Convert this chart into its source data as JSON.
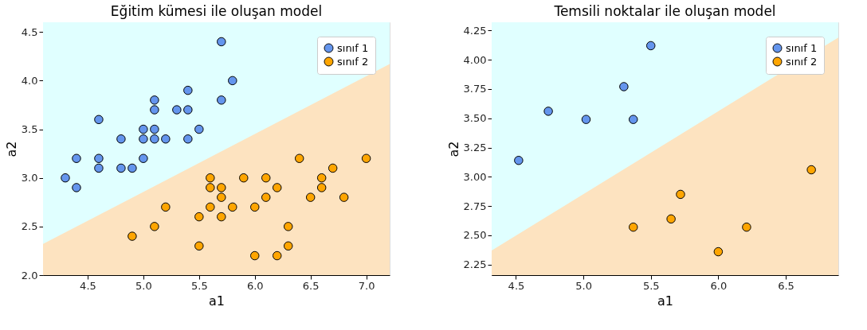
{
  "chart_data": [
    {
      "type": "scatter",
      "title": "Eğitim kümesi ile oluşan model",
      "xlabel": "a1",
      "ylabel": "a2",
      "xlim": [
        4.1,
        7.21
      ],
      "ylim": [
        2.0,
        4.6
      ],
      "xticks": [
        {
          "value": 4.5,
          "label": "4.5"
        },
        {
          "value": 5,
          "label": "5.0"
        },
        {
          "value": 5.5,
          "label": "5.5"
        },
        {
          "value": 6,
          "label": "6.0"
        },
        {
          "value": 6.5,
          "label": "6.5"
        },
        {
          "value": 7,
          "label": "7.0"
        }
      ],
      "yticks": [
        {
          "value": 2,
          "label": "2.0"
        },
        {
          "value": 2.5,
          "label": "2.5"
        },
        {
          "value": 3,
          "label": "3.0"
        },
        {
          "value": 3.5,
          "label": "3.5"
        },
        {
          "value": 4,
          "label": "4.0"
        },
        {
          "value": 4.5,
          "label": "4.5"
        }
      ],
      "legend": "top right",
      "bands": [
        {
          "axis": "y",
          "from": 2.0,
          "to": 4.6,
          "color": "#e0ffff"
        }
      ],
      "series": [
        {
          "type": "area",
          "color": "#fde3c0",
          "x": [
            4.1,
            7.21
          ],
          "values": [
            2.32,
            4.17
          ]
        },
        {
          "name": "sınıf 1",
          "color": "#6495ed",
          "marker": "circle",
          "x": [
            4.3,
            4.4,
            4.4,
            4.6,
            4.6,
            4.6,
            4.8,
            4.8,
            4.9,
            5.0,
            5.0,
            5.0,
            5.1,
            5.1,
            5.1,
            5.1,
            5.2,
            5.3,
            5.4,
            5.4,
            5.4,
            5.5,
            5.7,
            5.7,
            5.8
          ],
          "values": [
            3.0,
            3.2,
            2.9,
            3.6,
            3.2,
            3.1,
            3.4,
            3.1,
            3.1,
            3.5,
            3.4,
            3.2,
            3.8,
            3.7,
            3.5,
            3.4,
            3.4,
            3.7,
            3.9,
            3.7,
            3.4,
            3.5,
            4.4,
            3.8,
            4.0
          ]
        },
        {
          "name": "sınıf 2",
          "color": "#ffa500",
          "marker": "circle",
          "x": [
            4.9,
            5.1,
            5.2,
            5.5,
            5.5,
            5.6,
            5.6,
            5.6,
            5.7,
            5.7,
            5.7,
            5.8,
            5.9,
            6.0,
            6.0,
            6.1,
            6.1,
            6.2,
            6.2,
            6.3,
            6.3,
            6.4,
            6.5,
            6.6,
            6.6,
            6.7,
            6.8,
            7.0
          ],
          "values": [
            2.4,
            2.5,
            2.7,
            2.6,
            2.3,
            3.0,
            2.9,
            2.7,
            2.9,
            2.8,
            2.6,
            2.7,
            3.0,
            2.7,
            2.2,
            3.0,
            2.8,
            2.9,
            2.2,
            2.5,
            2.3,
            3.2,
            2.8,
            3.0,
            2.9,
            3.1,
            2.8,
            3.2
          ]
        }
      ]
    },
    {
      "type": "scatter",
      "title": "Temsili noktalar ile oluşan model",
      "xlabel": "a1",
      "ylabel": "a2",
      "xlim": [
        4.32,
        6.89
      ],
      "ylim": [
        2.16,
        4.32
      ],
      "xticks": [
        {
          "value": 4.5,
          "label": "4.5"
        },
        {
          "value": 5,
          "label": "5.0"
        },
        {
          "value": 5.5,
          "label": "5.5"
        },
        {
          "value": 6,
          "label": "6.0"
        },
        {
          "value": 6.5,
          "label": "6.5"
        }
      ],
      "yticks": [
        {
          "value": 2.25,
          "label": "2.25"
        },
        {
          "value": 2.5,
          "label": "2.50"
        },
        {
          "value": 2.75,
          "label": "2.75"
        },
        {
          "value": 3,
          "label": "3.00"
        },
        {
          "value": 3.25,
          "label": "3.25"
        },
        {
          "value": 3.5,
          "label": "3.50"
        },
        {
          "value": 3.75,
          "label": "3.75"
        },
        {
          "value": 4,
          "label": "4.00"
        },
        {
          "value": 4.25,
          "label": "4.25"
        }
      ],
      "legend": "top right",
      "bands": [
        {
          "axis": "y",
          "from": 2.16,
          "to": 4.32,
          "color": "#e0ffff"
        }
      ],
      "series": [
        {
          "type": "area",
          "color": "#fde3c0",
          "x": [
            4.32,
            6.89
          ],
          "values": [
            2.37,
            4.19
          ]
        },
        {
          "name": "sınıf 1",
          "color": "#6495ed",
          "marker": "circle",
          "x": [
            4.52,
            4.74,
            5.02,
            5.3,
            5.37,
            5.5
          ],
          "values": [
            3.14,
            3.56,
            3.49,
            3.77,
            3.49,
            4.12
          ]
        },
        {
          "name": "sınıf 2",
          "color": "#ffa500",
          "marker": "circle",
          "x": [
            5.37,
            5.65,
            5.72,
            6.0,
            6.21,
            6.69
          ],
          "values": [
            2.57,
            2.64,
            2.85,
            2.36,
            2.57,
            3.06
          ]
        }
      ]
    }
  ]
}
